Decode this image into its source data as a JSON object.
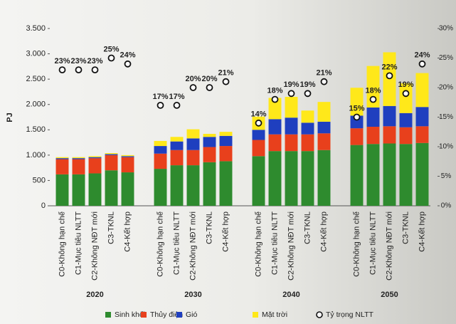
{
  "chart_data": {
    "type": "stacked-bar",
    "ylabel": "PJ",
    "groups": [
      "2020",
      "2030",
      "2040",
      "2050"
    ],
    "categories": [
      "C0-Không hạn chế",
      "C1-Mục tiêu NLTT",
      "C2-Không NĐT mới",
      "C3-TKNL",
      "C4-Kết hợp",
      "C0-Không hạn chế",
      "C1-Mục tiêu NLTT",
      "C2-Không NĐT mới",
      "C3-TKNL",
      "C4-Kết hợp",
      "C0-Không hạn chế",
      "C1-Mục tiêu NLTT",
      "C2-Không NĐT mới",
      "C3-TKNL",
      "C4-Kết hợp",
      "C0-Không hạn chế",
      "C1-Mục tiêu NLTT",
      "C2-Không NĐT mới",
      "C3-TKNL",
      "C4-Kết hợp"
    ],
    "series": [
      {
        "name": "Sinh khối",
        "color": "#2e8b2e",
        "values": [
          620,
          620,
          640,
          700,
          660,
          730,
          800,
          800,
          860,
          880,
          980,
          1080,
          1080,
          1080,
          1100,
          1200,
          1220,
          1230,
          1220,
          1240
        ]
      },
      {
        "name": "Thủy điện",
        "color": "#e8401c",
        "values": [
          300,
          300,
          300,
          300,
          300,
          300,
          300,
          300,
          300,
          300,
          320,
          330,
          330,
          330,
          330,
          330,
          340,
          340,
          330,
          330
        ]
      },
      {
        "name": "Gió",
        "color": "#1f3fbf",
        "values": [
          20,
          20,
          20,
          20,
          20,
          150,
          170,
          230,
          200,
          200,
          200,
          300,
          330,
          230,
          230,
          250,
          380,
          400,
          280,
          380
        ]
      },
      {
        "name": "Mặt trời",
        "color": "#ffe81a",
        "values": [
          20,
          20,
          20,
          20,
          20,
          100,
          90,
          180,
          60,
          80,
          260,
          420,
          410,
          240,
          390,
          550,
          820,
          1060,
          590,
          670
        ]
      },
      {
        "name": "Tỷ trọng NLTT",
        "type": "marker",
        "axis": "y2",
        "color": "#ffffff",
        "values": [
          23,
          23,
          23,
          25,
          24,
          17,
          17,
          20,
          20,
          21,
          14,
          18,
          19,
          19,
          21,
          15,
          18,
          22,
          19,
          24
        ],
        "value_labels": [
          "23%",
          "23%",
          "23%",
          "25%",
          "24%",
          "17%",
          "17%",
          "20%",
          "20%",
          "21%",
          "14%",
          "18%",
          "19%",
          "19%",
          "21%",
          "15%",
          "18%",
          "22%",
          "19%",
          "24%"
        ]
      }
    ],
    "ylim": [
      0,
      3500
    ],
    "yticks": [
      0,
      500,
      {
        "value": 1000,
        "label": "1.000"
      },
      {
        "value": 1500,
        "label": "1.500"
      },
      {
        "value": 2000,
        "label": "2.000"
      },
      {
        "value": 2500,
        "label": "2.500"
      },
      {
        "value": 3000,
        "label": "3.000"
      },
      {
        "value": 3500,
        "label": "3.500"
      }
    ],
    "y2lim": [
      0,
      30
    ],
    "y2ticks": [
      {
        "value": 0,
        "label": "0%"
      },
      {
        "value": 5,
        "label": "5%"
      },
      {
        "value": 10,
        "label": "10%"
      },
      {
        "value": 15,
        "label": "15%"
      },
      {
        "value": 20,
        "label": "20%"
      },
      {
        "value": 25,
        "label": "25%"
      },
      {
        "value": 30,
        "label": "30%"
      }
    ],
    "grid": false,
    "legend": "bottom"
  }
}
